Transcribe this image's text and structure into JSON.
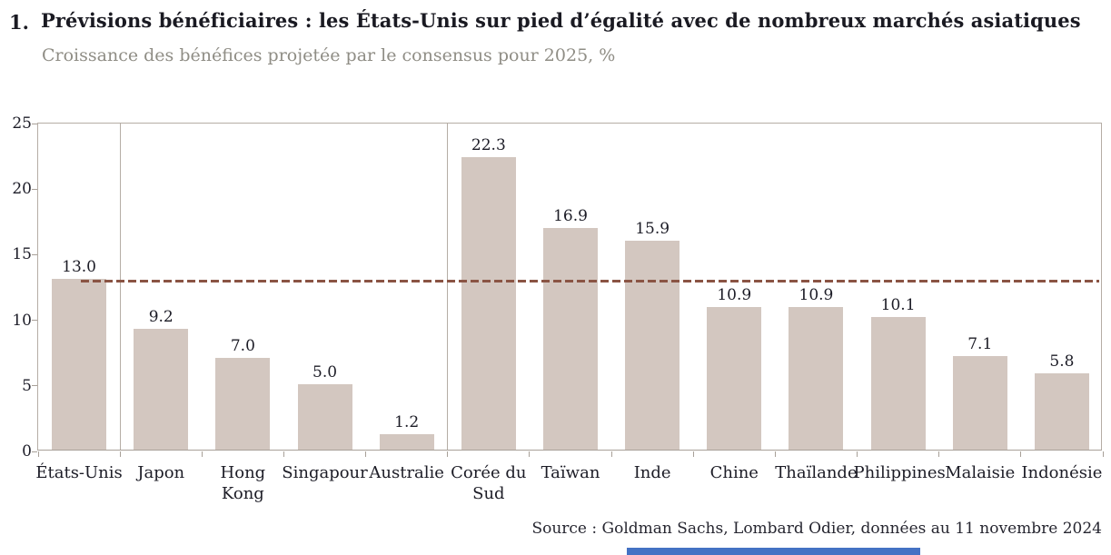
{
  "figure": {
    "number": "1.",
    "title": "Prévisions bénéficiaires : les États-Unis sur pied d’égalité avec de nombreux marchés asiatiques",
    "subtitle": "Croissance des bénéfices projetée par le consensus pour 2025, %",
    "source": "Source : Goldman Sachs, Lombard Odier, données au 11 novembre 2024"
  },
  "colors": {
    "bar_fill": "#d3c7c0",
    "reference_line": "#8a5444",
    "axis": "#b5ada5",
    "title_text": "#1a1a22",
    "subtitle_text": "#8f8d85",
    "label_text": "#1c1c26",
    "bottom_accent": "#4472c4"
  },
  "chart_data": {
    "type": "bar",
    "title": "Prévisions bénéficiaires : les États-Unis sur pied d’égalité avec de nombreux marchés asiatiques",
    "subtitle": "Croissance des bénéfices projetée par le consensus pour 2025, %",
    "categories": [
      "États-Unis",
      "Japon",
      "Hong Kong",
      "Singapour",
      "Australie",
      "Corée du Sud",
      "Taïwan",
      "Inde",
      "Chine",
      "Thaïlande",
      "Philippines",
      "Malaisie",
      "Indonésie"
    ],
    "values": [
      13.0,
      9.2,
      7.0,
      5.0,
      1.2,
      22.3,
      16.9,
      15.9,
      10.9,
      10.9,
      10.1,
      7.1,
      5.8
    ],
    "value_labels": [
      "13.0",
      "9.2",
      "7.0",
      "5.0",
      "1.2",
      "22.3",
      "16.9",
      "15.9",
      "10.9",
      "10.9",
      "10.1",
      "7.1",
      "5.8"
    ],
    "xlabel": "",
    "ylabel": "",
    "ylim": [
      0,
      25
    ],
    "y_ticks": [
      0,
      5,
      10,
      15,
      20,
      25
    ],
    "grid": false,
    "legend": "none",
    "reference_line_value": 13.0,
    "group_separators_after_category_index": [
      0,
      4
    ],
    "source": "Source : Goldman Sachs, Lombard Odier, données au 11 novembre 2024"
  }
}
